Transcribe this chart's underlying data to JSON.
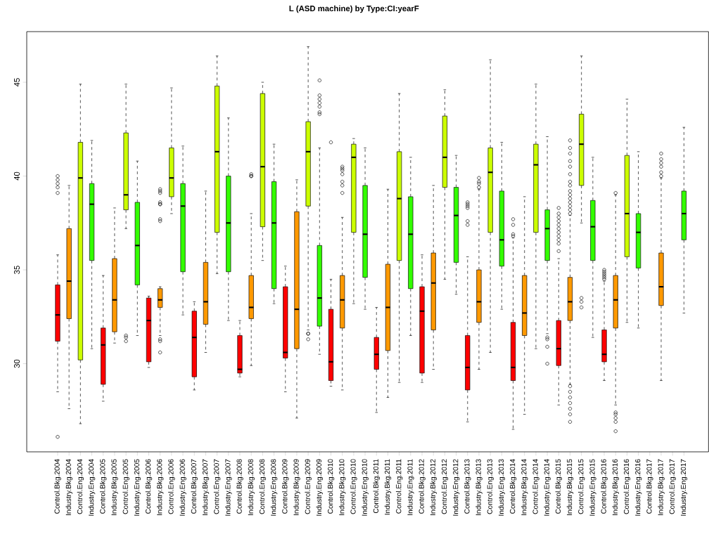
{
  "chart_data": {
    "type": "box",
    "title": "L (ASD machine) by Type:CI:yearF",
    "categories": [
      "Control.Bkg.2004",
      "Industry.Bkg.2004",
      "Control.Eng.2004",
      "Industry.Eng.2004",
      "Control.Bkg.2005",
      "Industry.Bkg.2005",
      "Control.Eng.2005",
      "Industry.Eng.2005",
      "Control.Bkg.2006",
      "Industry.Bkg.2006",
      "Control.Eng.2006",
      "Industry.Eng.2006",
      "Control.Bkg.2007",
      "Industry.Bkg.2007",
      "Control.Eng.2007",
      "Industry.Eng.2007",
      "Control.Bkg.2008",
      "Industry.Bkg.2008",
      "Control.Eng.2008",
      "Industry.Eng.2008",
      "Control.Bkg.2009",
      "Industry.Bkg.2009",
      "Control.Eng.2009",
      "Industry.Eng.2009",
      "Control.Bkg.2010",
      "Industry.Bkg.2010",
      "Control.Eng.2010",
      "Industry.Eng.2010",
      "Control.Bkg.2011",
      "Industry.Bkg.2011",
      "Control.Eng.2011",
      "Industry.Eng.2011",
      "Control.Bkg.2012",
      "Industry.Bkg.2012",
      "Control.Eng.2012",
      "Industry.Eng.2012",
      "Control.Bkg.2013",
      "Industry.Bkg.2013",
      "Control.Eng.2013",
      "Industry.Eng.2013",
      "Control.Bkg.2014",
      "Industry.Bkg.2014",
      "Control.Eng.2014",
      "Industry.Eng.2014",
      "Control.Bkg.2015",
      "Industry.Bkg.2015",
      "Control.Eng.2015",
      "Industry.Eng.2015",
      "Control.Bkg.2016",
      "Industry.Bkg.2016",
      "Control.Eng.2016",
      "Industry.Eng.2016",
      "Control.Bkg.2017",
      "Industry.Bkg.2017",
      "Control.Eng.2017",
      "Industry.Eng.2017"
    ],
    "colors": [
      "#ff0000",
      "#ff9900",
      "#ccff00",
      "#33ff00",
      "#ff0000",
      "#ff9900",
      "#ccff00",
      "#33ff00",
      "#ff0000",
      "#ff9900",
      "#ccff00",
      "#33ff00",
      "#ff0000",
      "#ff9900",
      "#ccff00",
      "#33ff00",
      "#ff0000",
      "#ff9900",
      "#ccff00",
      "#33ff00",
      "#ff0000",
      "#ff9900",
      "#ccff00",
      "#33ff00",
      "#ff0000",
      "#ff9900",
      "#ccff00",
      "#33ff00",
      "#ff0000",
      "#ff9900",
      "#ccff00",
      "#33ff00",
      "#ff0000",
      "#ff9900",
      "#ccff00",
      "#33ff00",
      "#ff0000",
      "#ff9900",
      "#ccff00",
      "#33ff00",
      "#ff0000",
      "#ff9900",
      "#ccff00",
      "#33ff00",
      "#ff0000",
      "#ff9900",
      "#ccff00",
      "#33ff00",
      "#ff0000",
      "#ff9900",
      "#ccff00",
      "#33ff00",
      "#ff0000",
      "#ff9900",
      "#ccff00",
      "#33ff00"
    ],
    "boxes": [
      {
        "low": 28.5,
        "q1": 31.2,
        "median": 32.6,
        "q3": 34.2,
        "high": 35.8,
        "outliers": [
          40.0,
          39.8,
          39.6,
          39.4,
          39.1,
          26.1
        ]
      },
      {
        "low": 27.6,
        "q1": 32.4,
        "median": 34.4,
        "q3": 37.2,
        "high": 39.5
      },
      {
        "low": 26.8,
        "q1": 30.2,
        "median": 39.9,
        "q3": 41.8,
        "high": 44.9
      },
      {
        "low": 30.8,
        "q1": 35.5,
        "median": 38.5,
        "q3": 39.6,
        "high": 41.9
      },
      {
        "low": 28.0,
        "q1": 28.9,
        "median": 31.0,
        "q3": 31.9,
        "high": 34.7
      },
      {
        "low": 31.1,
        "q1": 31.7,
        "median": 33.4,
        "q3": 35.6,
        "high": 38.3
      },
      {
        "low": 37.2,
        "q1": 38.2,
        "median": 39.0,
        "q3": 42.3,
        "high": 44.9,
        "outliers": [
          31.5,
          31.4,
          31.2
        ]
      },
      {
        "low": 31.5,
        "q1": 34.2,
        "median": 36.3,
        "q3": 38.6,
        "high": 40.8
      },
      {
        "low": 29.8,
        "q1": 30.1,
        "median": 32.3,
        "q3": 33.5,
        "high": 33.6
      },
      {
        "low": 31.5,
        "q1": 33.0,
        "median": 33.4,
        "q3": 34.0,
        "high": 34.1,
        "outliers": [
          39.3,
          39.2,
          39.1,
          38.6,
          38.5,
          38.5,
          37.7,
          37.6,
          31.3,
          31.2,
          30.6
        ]
      },
      {
        "low": 38.0,
        "q1": 38.9,
        "median": 39.9,
        "q3": 41.5,
        "high": 44.7
      },
      {
        "low": 32.6,
        "q1": 34.9,
        "median": 38.4,
        "q3": 39.6,
        "high": 41.6
      },
      {
        "low": 28.6,
        "q1": 29.3,
        "median": 31.4,
        "q3": 32.8,
        "high": 33.3
      },
      {
        "low": 30.6,
        "q1": 32.1,
        "median": 33.3,
        "q3": 35.4,
        "high": 39.2
      },
      {
        "low": 34.8,
        "q1": 37.0,
        "median": 41.3,
        "q3": 44.8,
        "high": 46.4
      },
      {
        "low": 32.3,
        "q1": 34.9,
        "median": 37.5,
        "q3": 40.0,
        "high": 43.1
      },
      {
        "low": 29.3,
        "q1": 29.5,
        "median": 29.7,
        "q3": 31.5,
        "high": 32.3
      },
      {
        "low": 29.9,
        "q1": 32.4,
        "median": 33.0,
        "q3": 34.7,
        "high": 38.0,
        "outliers": [
          40.1,
          40.0,
          40.0
        ]
      },
      {
        "low": 35.5,
        "q1": 37.3,
        "median": 40.5,
        "q3": 44.4,
        "high": 45.0
      },
      {
        "low": 33.2,
        "q1": 34.0,
        "median": 37.5,
        "q3": 39.7,
        "high": 41.7
      },
      {
        "low": 28.5,
        "q1": 30.3,
        "median": 30.6,
        "q3": 34.1,
        "high": 35.2
      },
      {
        "low": 27.1,
        "q1": 30.8,
        "median": 32.9,
        "q3": 38.1,
        "high": 39.8
      },
      {
        "low": 31.8,
        "q1": 38.4,
        "median": 41.3,
        "q3": 42.9,
        "high": 46.9,
        "outliers": [
          31.6,
          31.6,
          31.3
        ]
      },
      {
        "low": 30.5,
        "q1": 32.0,
        "median": 33.5,
        "q3": 36.3,
        "high": 41.5,
        "outliers": [
          45.1,
          44.3,
          44.1,
          43.9,
          43.7,
          43.4,
          43.3
        ]
      },
      {
        "low": 28.8,
        "q1": 29.1,
        "median": 30.1,
        "q3": 32.9,
        "high": 34.5,
        "outliers": [
          41.8
        ]
      },
      {
        "low": 28.6,
        "q1": 31.9,
        "median": 33.4,
        "q3": 34.7,
        "high": 37.8,
        "outliers": [
          40.5,
          40.4,
          40.3,
          40.1,
          39.7,
          39.5,
          39.1
        ]
      },
      {
        "low": 33.2,
        "q1": 37.0,
        "median": 41.0,
        "q3": 41.7,
        "high": 42.0
      },
      {
        "low": 32.9,
        "q1": 34.6,
        "median": 36.9,
        "q3": 39.5,
        "high": 41.5
      },
      {
        "low": 27.4,
        "q1": 29.7,
        "median": 30.5,
        "q3": 31.4,
        "high": 33.0
      },
      {
        "low": 28.2,
        "q1": 30.7,
        "median": 33.0,
        "q3": 35.3,
        "high": 39.3
      },
      {
        "low": 29.0,
        "q1": 35.5,
        "median": 38.8,
        "q3": 41.3,
        "high": 44.4
      },
      {
        "low": 31.5,
        "q1": 34.0,
        "median": 36.9,
        "q3": 38.9,
        "high": 41.0
      },
      {
        "low": 29.0,
        "q1": 29.5,
        "median": 32.8,
        "q3": 34.1,
        "high": 35.8
      },
      {
        "low": 29.7,
        "q1": 31.8,
        "median": 34.3,
        "q3": 35.9,
        "high": 39.5
      },
      {
        "low": 34.5,
        "q1": 39.4,
        "median": 41.0,
        "q3": 43.2,
        "high": 44.6
      },
      {
        "low": 33.7,
        "q1": 35.4,
        "median": 37.9,
        "q3": 39.4,
        "high": 41.1
      },
      {
        "low": 26.9,
        "q1": 28.6,
        "median": 29.8,
        "q3": 31.5,
        "high": 35.7,
        "outliers": [
          38.6,
          38.5,
          38.4,
          38.3,
          37.6,
          37.4
        ]
      },
      {
        "low": 29.7,
        "q1": 32.2,
        "median": 33.3,
        "q3": 35.0,
        "high": 39.3,
        "outliers": [
          39.9,
          39.7,
          39.6,
          39.4
        ]
      },
      {
        "low": 30.6,
        "q1": 37.0,
        "median": 40.2,
        "q3": 41.5,
        "high": 46.2
      },
      {
        "low": 32.9,
        "q1": 35.2,
        "median": 36.6,
        "q3": 39.2,
        "high": 41.8
      },
      {
        "low": 26.5,
        "q1": 29.1,
        "median": 29.8,
        "q3": 32.2,
        "high": 36.7,
        "outliers": [
          37.7,
          37.4,
          36.9,
          36.8
        ]
      },
      {
        "low": 27.3,
        "q1": 31.5,
        "median": 32.7,
        "q3": 34.7,
        "high": 38.9
      },
      {
        "low": 30.8,
        "q1": 37.0,
        "median": 40.6,
        "q3": 41.7,
        "high": 44.9
      },
      {
        "low": 31.6,
        "q1": 35.5,
        "median": 37.2,
        "q3": 38.2,
        "high": 42.1,
        "outliers": [
          31.4,
          31.3,
          30.9,
          30.0
        ]
      },
      {
        "low": 27.8,
        "q1": 29.9,
        "median": 30.8,
        "q3": 32.3,
        "high": 35.6,
        "outliers": [
          38.3,
          38.0,
          37.8,
          37.6,
          37.4,
          37.2,
          37.0,
          36.8,
          36.6,
          36.4,
          36.0
        ]
      },
      {
        "low": 28.9,
        "q1": 32.3,
        "median": 33.3,
        "q3": 34.6,
        "high": 37.9,
        "outliers": [
          41.9,
          41.5,
          41.2,
          40.8,
          40.5,
          40.1,
          39.7,
          39.5,
          39.2,
          39.0,
          38.8,
          38.6,
          38.4,
          38.2,
          38.0,
          28.8,
          28.5,
          28.2,
          27.9,
          27.6,
          27.3,
          26.9
        ]
      },
      {
        "low": 37.5,
        "q1": 39.5,
        "median": 41.7,
        "q3": 43.3,
        "high": 46.4,
        "outliers": [
          33.5,
          33.3,
          33.0
        ]
      },
      {
        "low": 31.4,
        "q1": 35.5,
        "median": 37.3,
        "q3": 38.7,
        "high": 41.0
      },
      {
        "low": 29.1,
        "q1": 30.1,
        "median": 30.5,
        "q3": 31.8,
        "high": 34.4,
        "outliers": [
          35.0,
          34.9,
          34.8,
          34.7,
          34.6,
          34.5
        ]
      },
      {
        "low": 27.8,
        "q1": 31.9,
        "median": 33.4,
        "q3": 34.7,
        "high": 39.0,
        "outliers": [
          39.1,
          27.4,
          27.3,
          27.1,
          26.9,
          26.4
        ]
      },
      {
        "low": 32.2,
        "q1": 35.7,
        "median": 38.0,
        "q3": 41.1,
        "high": 44.1
      },
      {
        "low": 31.9,
        "q1": 35.1,
        "median": 37.0,
        "q3": 38.0,
        "high": 41.3
      },
      null,
      {
        "low": 29.1,
        "q1": 33.1,
        "median": 34.1,
        "q3": 35.9,
        "high": 39.9,
        "outliers": [
          41.2,
          40.9,
          40.7,
          40.5,
          40.2,
          40.0
        ]
      },
      null,
      {
        "low": 32.7,
        "q1": 36.6,
        "median": 38.0,
        "q3": 39.2,
        "high": 42.6
      }
    ],
    "marker": "circle",
    "ylim": [
      25.3,
      47.7
    ],
    "yticks": [
      30,
      35,
      40,
      45
    ]
  }
}
